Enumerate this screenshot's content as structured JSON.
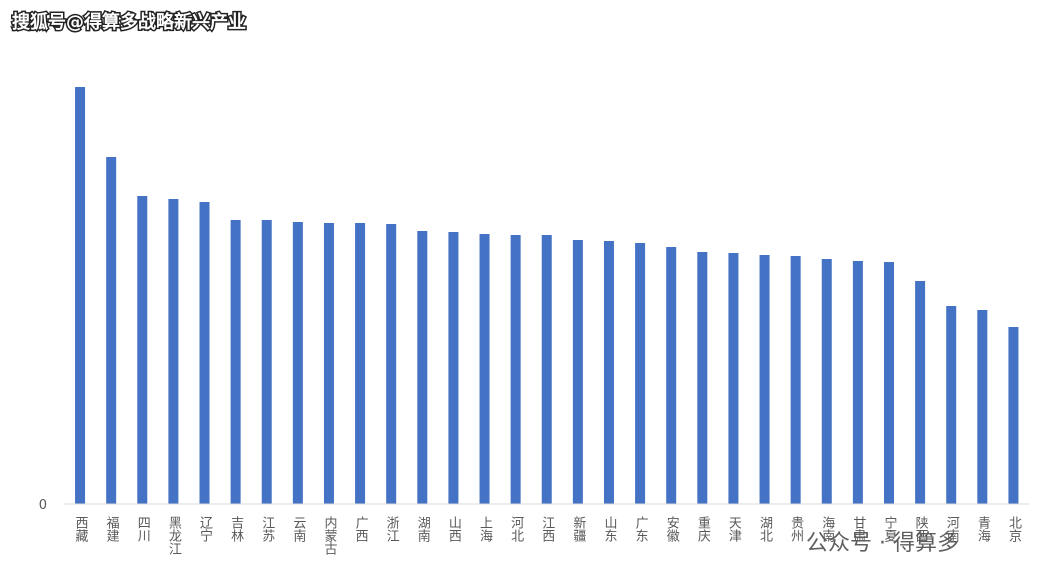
{
  "watermark": "搜狐号@得算多战略新兴产业",
  "footer_watermark": "公众号 · 得算多",
  "chart_data": {
    "type": "bar",
    "categories": [
      "西藏",
      "福建",
      "四川",
      "黑龙江",
      "辽宁",
      "吉林",
      "江苏",
      "云南",
      "内蒙古",
      "广西",
      "浙江",
      "湖南",
      "山西",
      "上海",
      "河北",
      "江西",
      "新疆",
      "山东",
      "广东",
      "安徽",
      "重庆",
      "天津",
      "湖北",
      "贵州",
      "海南",
      "甘肃",
      "宁夏",
      "陕西",
      "河南",
      "青海",
      "北京"
    ],
    "values": [
      417,
      347,
      308,
      305,
      302,
      284,
      284,
      282,
      281,
      281,
      280,
      273,
      272,
      270,
      269,
      269,
      264,
      263,
      261,
      257,
      252,
      251,
      249,
      248,
      245,
      243,
      242,
      223,
      198,
      194,
      177
    ],
    "color": "#4472c4",
    "ylim": [
      0,
      420
    ],
    "yticks": [
      0
    ]
  }
}
